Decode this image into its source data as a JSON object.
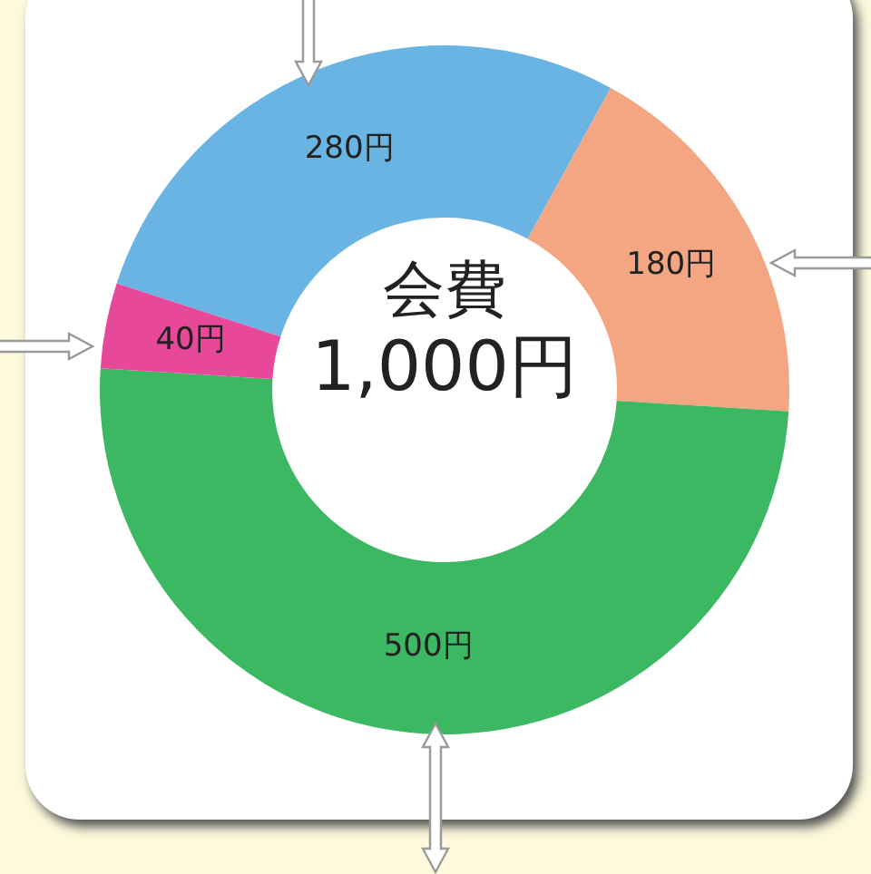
{
  "chart_data": {
    "type": "donut",
    "title": "会費",
    "subtitle": "1,000円",
    "categories": [
      null,
      null,
      null,
      null
    ],
    "values": [
      280,
      180,
      500,
      40
    ],
    "colors": [
      "#6ab4e4",
      "#f4a582",
      "#3cb862",
      "#e8489a"
    ],
    "value_labels": [
      "280円",
      "180円",
      "500円",
      "40円"
    ],
    "legend": false
  }
}
